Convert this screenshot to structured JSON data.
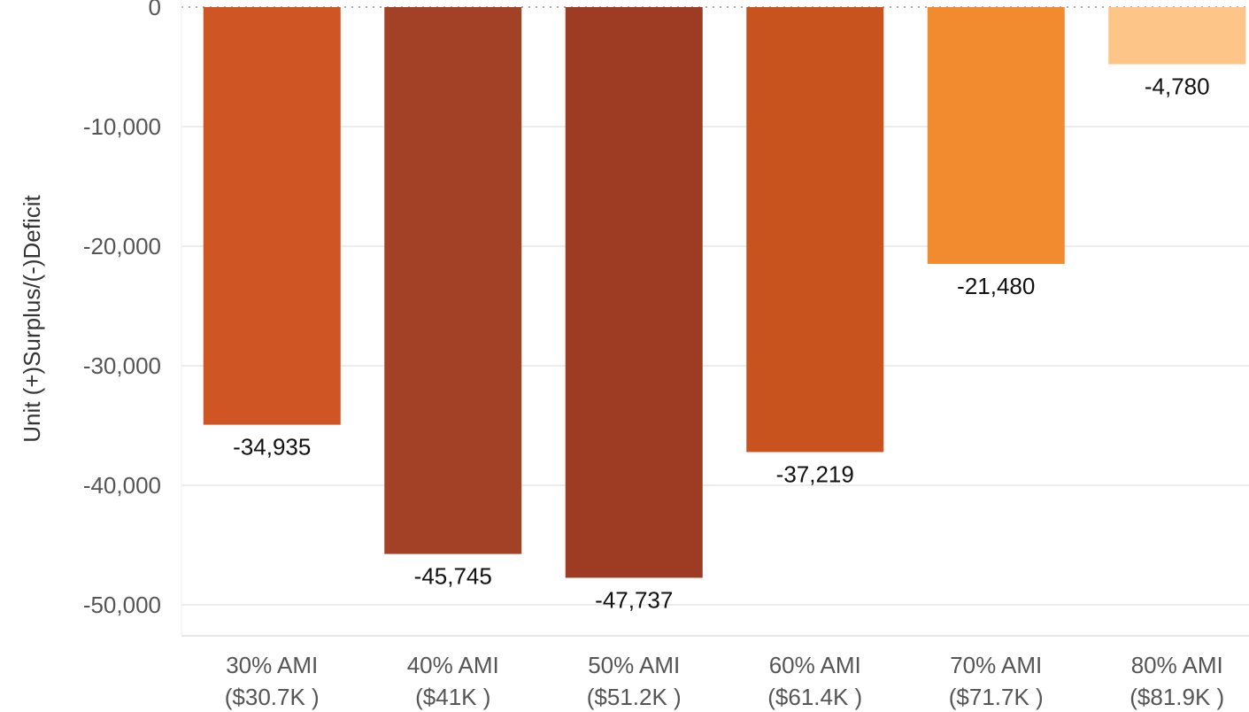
{
  "chart_data": {
    "type": "bar",
    "categories": [
      [
        "30% AMI",
        "($30.7K )"
      ],
      [
        "40% AMI",
        "($41K )"
      ],
      [
        "50% AMI",
        "($51.2K )"
      ],
      [
        "60% AMI",
        "($61.4K )"
      ],
      [
        "70% AMI",
        "($71.7K )"
      ],
      [
        "80% AMI",
        "($81.9K )"
      ]
    ],
    "values": [
      -34935,
      -45745,
      -47737,
      -37219,
      -21480,
      -4780
    ],
    "value_labels": [
      "-34,935",
      "-45,745",
      "-47,737",
      "-37,219",
      "-21,480",
      "-4,780"
    ],
    "bar_colors": [
      "#cf5624",
      "#a34126",
      "#9e3b23",
      "#c9531f",
      "#f28a30",
      "#fdc587"
    ],
    "ylabel": "Unit (+)Surplus/(-)Deficit",
    "yticks": [
      0,
      -10000,
      -20000,
      -30000,
      -40000,
      -50000
    ],
    "ytick_labels": [
      "0",
      "-10,000",
      "-20,000",
      "-30,000",
      "-40,000",
      "-50,000"
    ],
    "ylim": [
      -53000,
      0
    ],
    "grid": true,
    "zero_line": "dotted"
  }
}
